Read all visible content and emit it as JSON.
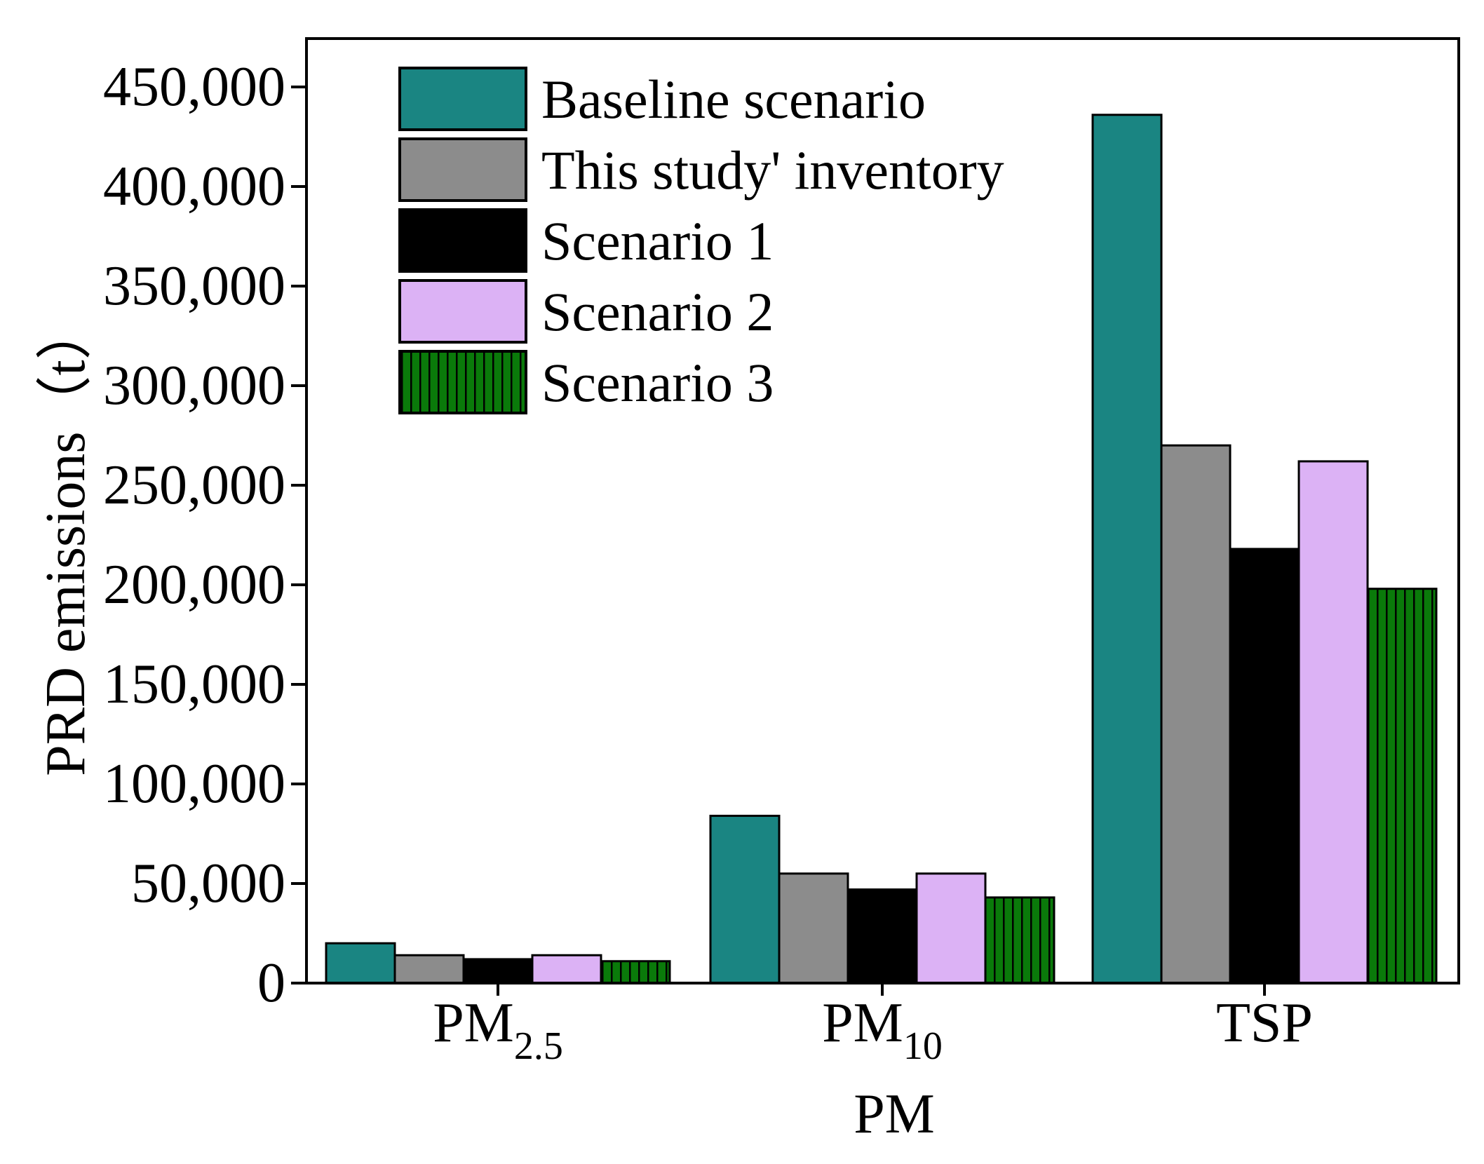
{
  "chart_data": {
    "type": "bar",
    "title": "",
    "xlabel": "PM",
    "ylabel": "PRD emissions（t）",
    "ylim": [
      0,
      475000
    ],
    "yticks": [
      0,
      50000,
      100000,
      150000,
      200000,
      250000,
      300000,
      350000,
      400000,
      450000
    ],
    "ytick_labels": [
      "0",
      "50,000",
      "100,000",
      "150,000",
      "200,000",
      "250,000",
      "300,000",
      "350,000",
      "400,000",
      "450,000"
    ],
    "categories": [
      {
        "main": "PM",
        "sub": "2.5"
      },
      {
        "main": "PM",
        "sub": "10"
      },
      {
        "main": "TSP",
        "sub": ""
      }
    ],
    "legend_position": "top-left",
    "series": [
      {
        "name": "Baseline scenario",
        "color": "#1a8582",
        "pattern": "solid",
        "values": [
          20000,
          84000,
          436000
        ]
      },
      {
        "name": "This study' inventory",
        "color": "#8c8c8c",
        "pattern": "solid",
        "values": [
          14000,
          55000,
          270000
        ]
      },
      {
        "name": "Scenario 1",
        "color": "#000000",
        "pattern": "solid",
        "values": [
          12000,
          47000,
          218000
        ]
      },
      {
        "name": "Scenario 2",
        "color": "#dcb2f5",
        "pattern": "solid",
        "values": [
          14000,
          55000,
          262000
        ]
      },
      {
        "name": "Scenario 3",
        "color": "#0a7a0a",
        "pattern": "vertical-lines",
        "values": [
          11000,
          43000,
          198000
        ]
      }
    ]
  }
}
